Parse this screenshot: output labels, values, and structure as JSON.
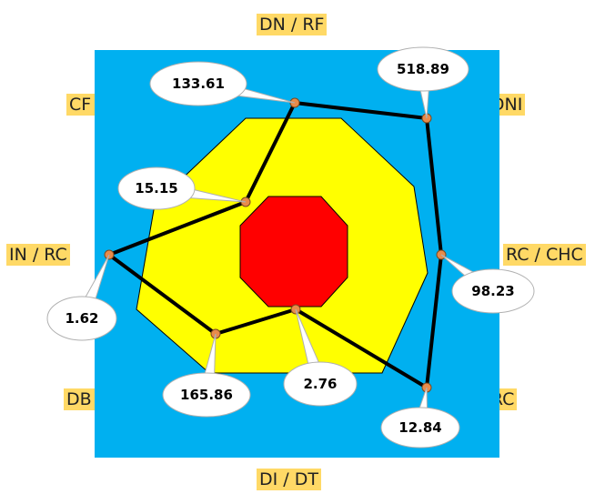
{
  "chart_data": {
    "type": "radar",
    "axes": [
      "DN / RF",
      "MA / DNI",
      "RC / CHC",
      "MA / RC",
      "DI / DT",
      "DB / RC",
      "IN / RC",
      "CF / RC"
    ],
    "values": [
      133.61,
      518.89,
      98.23,
      12.84,
      2.76,
      165.86,
      1.62,
      15.15
    ],
    "value_labels": [
      "133.61",
      "518.89",
      "98.23",
      "12.84",
      "2.76",
      "165.86",
      "1.62",
      "15.15"
    ],
    "background_color": "#00b0f0",
    "zones": [
      {
        "color": "#ffff00"
      },
      {
        "color": "#ff0000"
      }
    ],
    "series_color": "#000000",
    "marker_color": "#e88b4a",
    "label_background": "#ffd966"
  }
}
